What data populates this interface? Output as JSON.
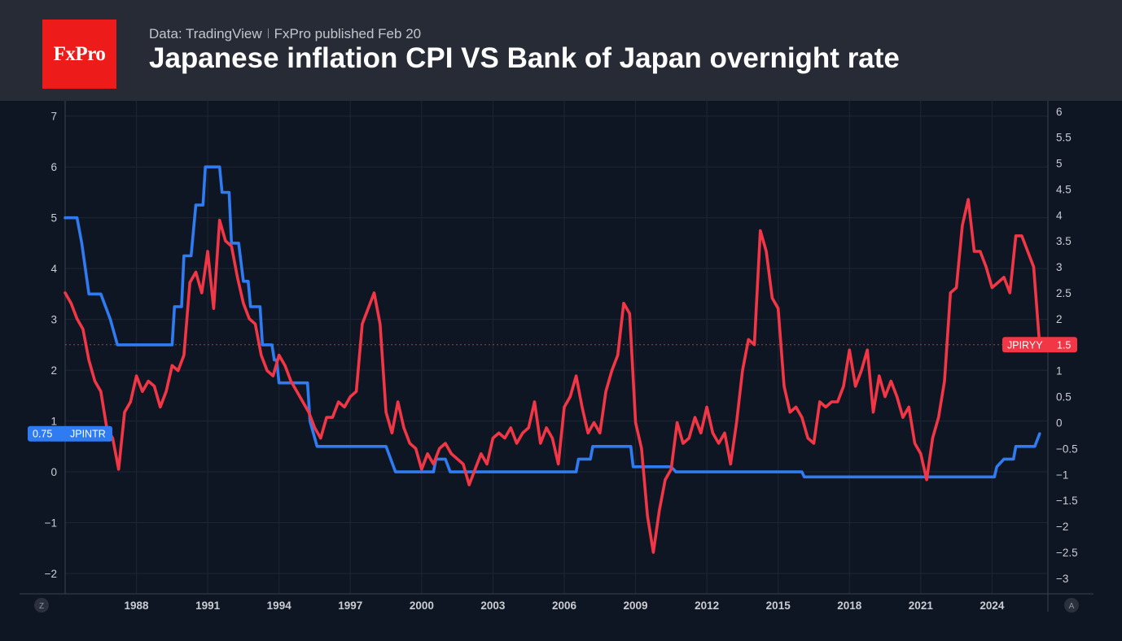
{
  "header": {
    "logo_text": "FxPro",
    "source_left": "Data: TradingView",
    "source_right": "FxPro published Feb 20",
    "title": "Japanese inflation CPI VS Bank of Japan overnight rate"
  },
  "colors": {
    "background": "#0f1623",
    "header_bg": "#272b35",
    "logo_red": "#ee1b1b",
    "cpi_series": "#f23645",
    "rate_series": "#2f7bf1"
  },
  "controls": {
    "left_corner": "Z",
    "right_corner": "A"
  },
  "chart_data": {
    "type": "line",
    "x_ticks": [
      "1988",
      "1991",
      "1994",
      "1997",
      "2000",
      "2003",
      "2006",
      "2009",
      "2012",
      "2015",
      "2018",
      "2021",
      "2024"
    ],
    "left_axis": {
      "ticks": [
        "7",
        "6",
        "5",
        "4",
        "3",
        "2",
        "1",
        "0",
        "−1",
        "−2"
      ],
      "range": [
        -2.4,
        7.3
      ],
      "applies_to": "JPINTR"
    },
    "right_axis": {
      "ticks": [
        "6",
        "5.5",
        "5",
        "4.5",
        "4",
        "3.5",
        "3",
        "2.5",
        "2",
        "1.5",
        "1",
        "0.5",
        "0",
        "−0.5",
        "−1",
        "−1.5",
        "−2",
        "−2.5",
        "−3"
      ],
      "range": [
        -3.3,
        6.2
      ],
      "applies_to": "JPIRYY"
    },
    "grid": true,
    "series": [
      {
        "name": "JPIRYY",
        "axis": "right",
        "color": "#f23645",
        "last_value_label": "1.5",
        "points": [
          [
            1985.0,
            2.5
          ],
          [
            1985.25,
            2.3
          ],
          [
            1985.5,
            2.0
          ],
          [
            1985.75,
            1.8
          ],
          [
            1986.0,
            1.2
          ],
          [
            1986.25,
            0.8
          ],
          [
            1986.5,
            0.6
          ],
          [
            1986.75,
            -0.1
          ],
          [
            1987.0,
            -0.3
          ],
          [
            1987.25,
            -0.9
          ],
          [
            1987.5,
            0.2
          ],
          [
            1987.75,
            0.4
          ],
          [
            1988.0,
            0.9
          ],
          [
            1988.25,
            0.6
          ],
          [
            1988.5,
            0.8
          ],
          [
            1988.75,
            0.7
          ],
          [
            1989.0,
            0.3
          ],
          [
            1989.25,
            0.6
          ],
          [
            1989.5,
            1.1
          ],
          [
            1989.75,
            1.0
          ],
          [
            1990.0,
            1.3
          ],
          [
            1990.25,
            2.7
          ],
          [
            1990.5,
            2.9
          ],
          [
            1990.75,
            2.5
          ],
          [
            1991.0,
            3.3
          ],
          [
            1991.25,
            2.2
          ],
          [
            1991.5,
            3.9
          ],
          [
            1991.75,
            3.5
          ],
          [
            1992.0,
            3.4
          ],
          [
            1992.25,
            2.8
          ],
          [
            1992.5,
            2.3
          ],
          [
            1992.75,
            2.0
          ],
          [
            1993.0,
            1.9
          ],
          [
            1993.25,
            1.3
          ],
          [
            1993.5,
            1.0
          ],
          [
            1993.75,
            0.9
          ],
          [
            1994.0,
            1.3
          ],
          [
            1994.25,
            1.1
          ],
          [
            1994.5,
            0.8
          ],
          [
            1994.75,
            0.6
          ],
          [
            1995.0,
            0.4
          ],
          [
            1995.25,
            0.2
          ],
          [
            1995.5,
            -0.1
          ],
          [
            1995.75,
            -0.3
          ],
          [
            1996.0,
            0.1
          ],
          [
            1996.25,
            0.1
          ],
          [
            1996.5,
            0.4
          ],
          [
            1996.75,
            0.3
          ],
          [
            1997.0,
            0.5
          ],
          [
            1997.25,
            0.6
          ],
          [
            1997.5,
            1.9
          ],
          [
            1997.75,
            2.2
          ],
          [
            1998.0,
            2.5
          ],
          [
            1998.25,
            1.9
          ],
          [
            1998.5,
            0.2
          ],
          [
            1998.75,
            -0.2
          ],
          [
            1999.0,
            0.4
          ],
          [
            1999.25,
            -0.1
          ],
          [
            1999.5,
            -0.4
          ],
          [
            1999.75,
            -0.5
          ],
          [
            2000.0,
            -0.9
          ],
          [
            2000.25,
            -0.6
          ],
          [
            2000.5,
            -0.8
          ],
          [
            2000.75,
            -0.5
          ],
          [
            2001.0,
            -0.4
          ],
          [
            2001.25,
            -0.6
          ],
          [
            2001.5,
            -0.7
          ],
          [
            2001.75,
            -0.8
          ],
          [
            2002.0,
            -1.2
          ],
          [
            2002.25,
            -0.9
          ],
          [
            2002.5,
            -0.6
          ],
          [
            2002.75,
            -0.8
          ],
          [
            2003.0,
            -0.3
          ],
          [
            2003.25,
            -0.2
          ],
          [
            2003.5,
            -0.3
          ],
          [
            2003.75,
            -0.1
          ],
          [
            2004.0,
            -0.4
          ],
          [
            2004.25,
            -0.2
          ],
          [
            2004.5,
            -0.1
          ],
          [
            2004.75,
            0.4
          ],
          [
            2005.0,
            -0.4
          ],
          [
            2005.25,
            -0.1
          ],
          [
            2005.5,
            -0.3
          ],
          [
            2005.75,
            -0.8
          ],
          [
            2006.0,
            0.3
          ],
          [
            2006.25,
            0.5
          ],
          [
            2006.5,
            0.9
          ],
          [
            2006.75,
            0.3
          ],
          [
            2007.0,
            -0.2
          ],
          [
            2007.25,
            0.0
          ],
          [
            2007.5,
            -0.2
          ],
          [
            2007.75,
            0.6
          ],
          [
            2008.0,
            1.0
          ],
          [
            2008.25,
            1.3
          ],
          [
            2008.5,
            2.3
          ],
          [
            2008.75,
            2.1
          ],
          [
            2009.0,
            0.0
          ],
          [
            2009.25,
            -0.5
          ],
          [
            2009.5,
            -1.8
          ],
          [
            2009.75,
            -2.5
          ],
          [
            2010.0,
            -1.7
          ],
          [
            2010.25,
            -1.1
          ],
          [
            2010.5,
            -0.9
          ],
          [
            2010.75,
            0.0
          ],
          [
            2011.0,
            -0.4
          ],
          [
            2011.25,
            -0.3
          ],
          [
            2011.5,
            0.1
          ],
          [
            2011.75,
            -0.2
          ],
          [
            2012.0,
            0.3
          ],
          [
            2012.25,
            -0.2
          ],
          [
            2012.5,
            -0.4
          ],
          [
            2012.75,
            -0.2
          ],
          [
            2013.0,
            -0.8
          ],
          [
            2013.25,
            0.0
          ],
          [
            2013.5,
            1.0
          ],
          [
            2013.75,
            1.6
          ],
          [
            2014.0,
            1.5
          ],
          [
            2014.25,
            3.7
          ],
          [
            2014.5,
            3.3
          ],
          [
            2014.75,
            2.4
          ],
          [
            2015.0,
            2.2
          ],
          [
            2015.25,
            0.7
          ],
          [
            2015.5,
            0.2
          ],
          [
            2015.75,
            0.3
          ],
          [
            2016.0,
            0.1
          ],
          [
            2016.25,
            -0.3
          ],
          [
            2016.5,
            -0.4
          ],
          [
            2016.75,
            0.4
          ],
          [
            2017.0,
            0.3
          ],
          [
            2017.25,
            0.4
          ],
          [
            2017.5,
            0.4
          ],
          [
            2017.75,
            0.7
          ],
          [
            2018.0,
            1.4
          ],
          [
            2018.25,
            0.7
          ],
          [
            2018.5,
            1.0
          ],
          [
            2018.75,
            1.4
          ],
          [
            2019.0,
            0.2
          ],
          [
            2019.25,
            0.9
          ],
          [
            2019.5,
            0.5
          ],
          [
            2019.75,
            0.8
          ],
          [
            2020.0,
            0.5
          ],
          [
            2020.25,
            0.1
          ],
          [
            2020.5,
            0.3
          ],
          [
            2020.75,
            -0.4
          ],
          [
            2021.0,
            -0.6
          ],
          [
            2021.25,
            -1.1
          ],
          [
            2021.5,
            -0.3
          ],
          [
            2021.75,
            0.1
          ],
          [
            2022.0,
            0.8
          ],
          [
            2022.25,
            2.5
          ],
          [
            2022.5,
            2.6
          ],
          [
            2022.75,
            3.8
          ],
          [
            2023.0,
            4.3
          ],
          [
            2023.25,
            3.3
          ],
          [
            2023.5,
            3.3
          ],
          [
            2023.75,
            3.0
          ],
          [
            2024.0,
            2.6
          ],
          [
            2024.25,
            2.7
          ],
          [
            2024.5,
            2.8
          ],
          [
            2024.75,
            2.5
          ],
          [
            2025.0,
            3.6
          ],
          [
            2025.25,
            3.6
          ],
          [
            2025.5,
            3.3
          ],
          [
            2025.75,
            3.0
          ],
          [
            2026.0,
            1.5
          ]
        ]
      },
      {
        "name": "JPINTR",
        "axis": "left",
        "color": "#2f7bf1",
        "last_value_label": "0.75",
        "points": [
          [
            1985.0,
            5.0
          ],
          [
            1985.5,
            5.0
          ],
          [
            1985.7,
            4.5
          ],
          [
            1986.0,
            3.5
          ],
          [
            1986.5,
            3.5
          ],
          [
            1986.9,
            3.0
          ],
          [
            1987.2,
            2.5
          ],
          [
            1989.5,
            2.5
          ],
          [
            1989.6,
            3.25
          ],
          [
            1989.9,
            3.25
          ],
          [
            1990.0,
            4.25
          ],
          [
            1990.3,
            4.25
          ],
          [
            1990.5,
            5.25
          ],
          [
            1990.8,
            5.25
          ],
          [
            1990.9,
            6.0
          ],
          [
            1991.5,
            6.0
          ],
          [
            1991.6,
            5.5
          ],
          [
            1991.9,
            5.5
          ],
          [
            1992.0,
            4.5
          ],
          [
            1992.3,
            4.5
          ],
          [
            1992.5,
            3.75
          ],
          [
            1992.7,
            3.75
          ],
          [
            1992.8,
            3.25
          ],
          [
            1993.2,
            3.25
          ],
          [
            1993.3,
            2.5
          ],
          [
            1993.7,
            2.5
          ],
          [
            1993.8,
            2.2
          ],
          [
            1993.9,
            2.2
          ],
          [
            1994.0,
            1.75
          ],
          [
            1995.2,
            1.75
          ],
          [
            1995.3,
            1.0
          ],
          [
            1995.6,
            0.5
          ],
          [
            1998.5,
            0.5
          ],
          [
            1998.7,
            0.25
          ],
          [
            1998.9,
            0.0
          ],
          [
            2000.5,
            0.0
          ],
          [
            2000.6,
            0.25
          ],
          [
            2001.0,
            0.25
          ],
          [
            2001.2,
            0.0
          ],
          [
            2006.5,
            0.0
          ],
          [
            2006.6,
            0.25
          ],
          [
            2007.1,
            0.25
          ],
          [
            2007.2,
            0.5
          ],
          [
            2008.8,
            0.5
          ],
          [
            2008.9,
            0.1
          ],
          [
            2010.5,
            0.1
          ],
          [
            2010.7,
            0.0
          ],
          [
            2016.0,
            0.0
          ],
          [
            2016.1,
            -0.1
          ],
          [
            2024.1,
            -0.1
          ],
          [
            2024.2,
            0.1
          ],
          [
            2024.5,
            0.25
          ],
          [
            2024.9,
            0.25
          ],
          [
            2025.0,
            0.5
          ],
          [
            2025.8,
            0.5
          ],
          [
            2026.0,
            0.75
          ]
        ]
      }
    ],
    "reference_line": {
      "axis": "right",
      "value": 1.5
    }
  }
}
